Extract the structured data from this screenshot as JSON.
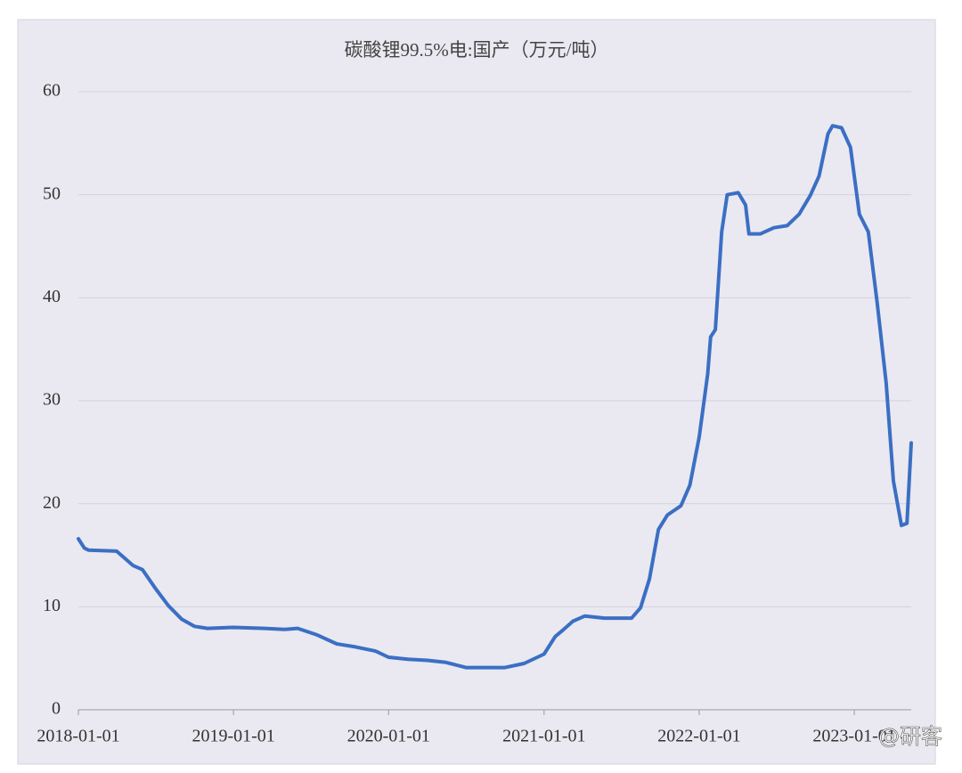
{
  "chart_data": {
    "type": "line",
    "title": "碳酸锂99.5%电:国产（万元/吨）",
    "x": [
      "2018-01-01",
      "2018-01-15",
      "2018-01-25",
      "2018-04-01",
      "2018-05-10",
      "2018-06-01",
      "2018-07-01",
      "2018-08-01",
      "2018-09-01",
      "2018-10-01",
      "2018-11-01",
      "2019-01-01",
      "2019-03-15",
      "2019-05-01",
      "2019-06-01",
      "2019-07-15",
      "2019-09-01",
      "2019-10-15",
      "2019-12-01",
      "2020-01-01",
      "2020-02-15",
      "2020-04-01",
      "2020-05-15",
      "2020-07-01",
      "2020-08-15",
      "2020-10-01",
      "2020-11-15",
      "2021-01-01",
      "2021-01-27",
      "2021-02-16",
      "2021-03-10",
      "2021-04-07",
      "2021-05-23",
      "2021-07-26",
      "2021-08-16",
      "2021-09-06",
      "2021-09-27",
      "2021-10-18",
      "2021-11-19",
      "2021-12-10",
      "2022-01-01",
      "2022-01-21",
      "2022-01-28",
      "2022-02-08",
      "2022-02-23",
      "2022-03-08",
      "2022-04-03",
      "2022-04-20",
      "2022-04-28",
      "2022-05-25",
      "2022-06-26",
      "2022-07-27",
      "2022-08-24",
      "2022-09-19",
      "2022-10-10",
      "2022-10-31",
      "2022-11-11",
      "2022-12-02",
      "2022-12-23",
      "2023-01-13",
      "2023-02-03",
      "2023-02-24",
      "2023-03-17",
      "2023-04-03",
      "2023-04-22",
      "2023-05-05",
      "2023-05-15"
    ],
    "series": [
      {
        "name": "碳酸锂99.5%电:国产",
        "color": "#3b6fc4",
        "values": [
          16.6,
          15.7,
          15.5,
          15.4,
          14.0,
          13.6,
          11.8,
          10.1,
          8.8,
          8.1,
          7.9,
          8.0,
          7.9,
          7.8,
          7.9,
          7.3,
          6.4,
          6.1,
          5.7,
          5.1,
          4.9,
          4.8,
          4.6,
          4.1,
          4.1,
          4.1,
          4.5,
          5.4,
          7.1,
          7.8,
          8.6,
          9.1,
          8.9,
          8.9,
          9.9,
          12.7,
          17.5,
          18.9,
          19.8,
          21.8,
          26.5,
          32.6,
          36.2,
          36.9,
          46.4,
          50.0,
          50.2,
          49.0,
          46.2,
          46.2,
          46.8,
          47.0,
          48.1,
          49.9,
          51.8,
          55.9,
          56.7,
          56.5,
          54.6,
          48.1,
          46.4,
          39.5,
          31.7,
          22.2,
          17.9,
          18.1,
          25.9
        ]
      }
    ],
    "xlim": [
      "2018-01-01",
      "2023-05-15"
    ],
    "xticks": [
      "2018-01-01",
      "2019-01-01",
      "2020-01-01",
      "2021-01-01",
      "2022-01-01",
      "2023-01-01"
    ],
    "ylim": [
      0,
      60
    ],
    "yticks": [
      0,
      10,
      20,
      30,
      40,
      50,
      60
    ],
    "grid": true,
    "watermark": "@研客"
  }
}
